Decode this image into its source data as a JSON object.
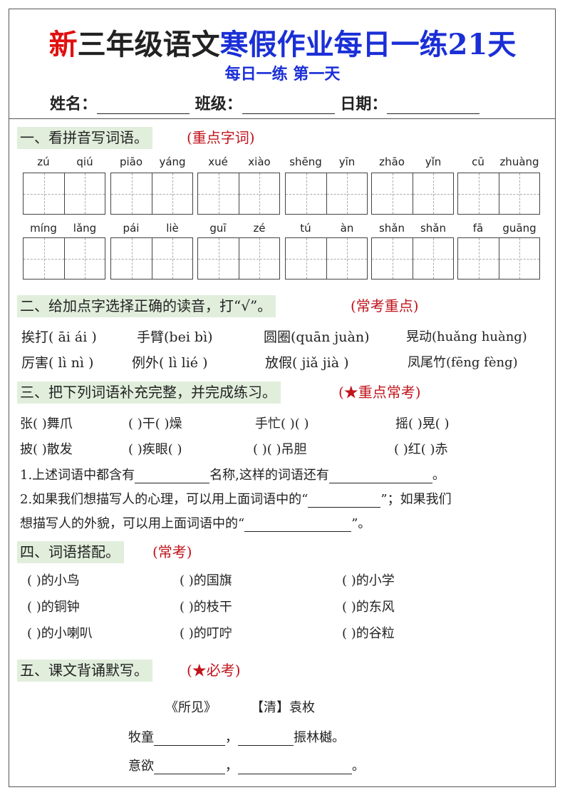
{
  "header": {
    "title_red": "新",
    "title_black": "三年级语文",
    "title_blue": "寒假作业每日一练21天",
    "subtitle": "每日一练  第一天",
    "name_label": "姓名：",
    "class_label": "班级：",
    "date_label": "日期："
  },
  "colors": {
    "red": "#e01010",
    "blue": "#1a2fd6",
    "section_bg": "#e1eedc",
    "tag": "#c0141c"
  },
  "s1": {
    "title": "一、看拼音写词语。",
    "tag": "(重点字词)",
    "row1": [
      "zú",
      "qiú",
      "piāo",
      "yáng",
      "xué",
      "xiào",
      "shēng",
      "yīn",
      "zhāo",
      "yǐn",
      "cū",
      "zhuàng"
    ],
    "row2": [
      "míng",
      "lǎng",
      "pái",
      "liè",
      "guī",
      "zé",
      "tú",
      "àn",
      "shǎn",
      "shǎn",
      "fā",
      "guāng"
    ]
  },
  "s2": {
    "title": "二、给加点字选择正确的读音，打“√”。",
    "tag": "(常考重点)",
    "items": [
      "挨打( āi  ái )",
      "手臂(bei   bì)",
      "圆圈(quān juàn)",
      "晃动(huǎng huàng)",
      "厉害( lì  nì )",
      "例外( lì   lié )",
      "放假( jiǎ  jià )",
      "凤尾竹(fēng  fèng)"
    ]
  },
  "s3": {
    "title": "三、把下列词语补充完整，并完成练习。",
    "tag": "(★重点常考)",
    "row1": [
      "张(    )舞爪",
      "(    )干(    )燥",
      "手忙(    )(    )",
      "摇(    )晃(    )"
    ],
    "row2": [
      "披(    )散发",
      "(    )疾眼(    )",
      "(    )(    )吊胆",
      "(    )红(    )赤"
    ],
    "q1a": "1.上述词语中都含有",
    "q1b": "名称,这样的词语还有",
    "q1c": "。",
    "q2a": "2.如果我们想描写人的心理，可以用上面词语中的“",
    "q2b": "”；如果我们",
    "q2c": "想描写人的外貌，可以用上面词语中的“",
    "q2d": "”。"
  },
  "s4": {
    "title": "四、词语搭配。",
    "tag": "(常考)",
    "items": [
      "(            )的小鸟",
      "(            )的国旗",
      "(            )的小学",
      "(            )的铜钟",
      "(            )的枝干",
      "(            )的东风",
      "(            )的小喇叭",
      "(            )的叮咛",
      "(            )的谷粒"
    ]
  },
  "s5": {
    "title": "五、课文背诵默写。",
    "tag": "(★必考)",
    "poem_title": "《所见》",
    "author": "【清】袁枚",
    "l1a": "牧童",
    "l1b": "，",
    "l1c": "振林樾。",
    "l2a": "意欲",
    "l2b": "，",
    "l2c": "。"
  }
}
